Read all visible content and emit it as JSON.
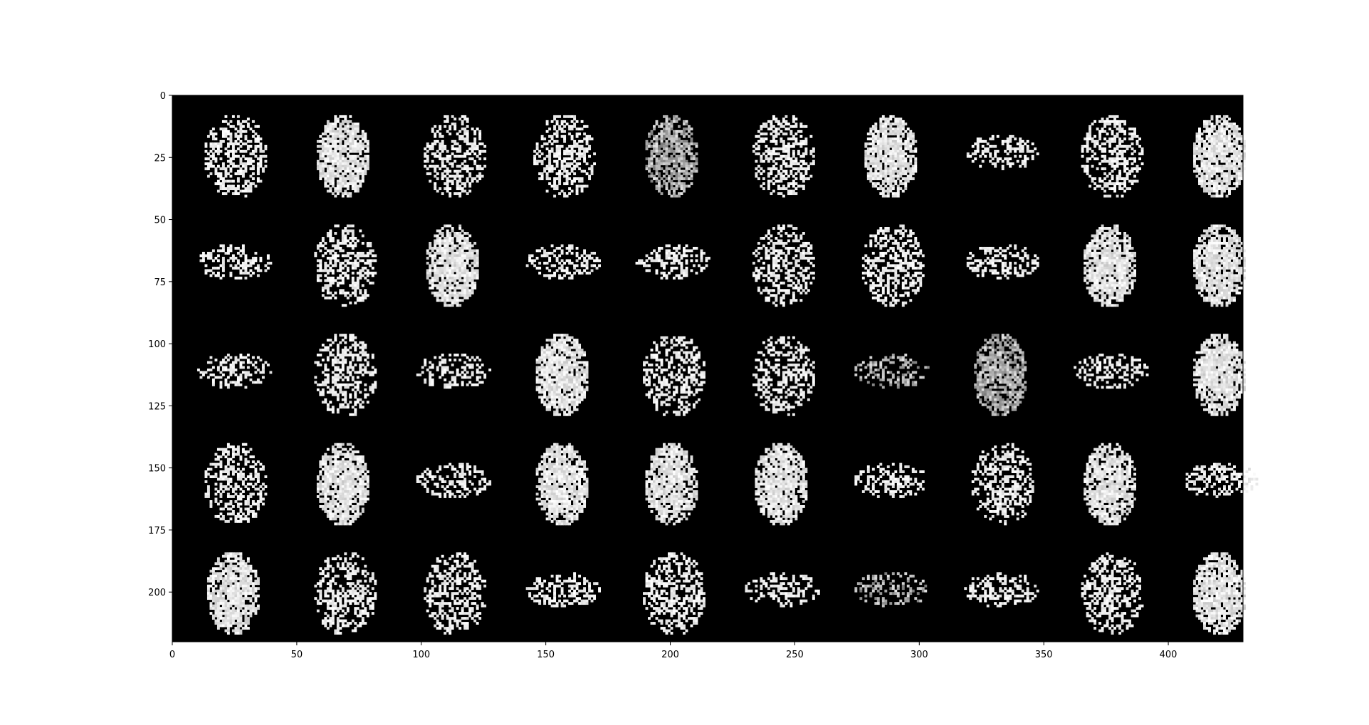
{
  "chart_data": {
    "type": "heatmap",
    "title": "",
    "xlabel": "",
    "ylabel": "",
    "colormap": "gray",
    "background_color": "#000000",
    "foreground_color": "#ffffff",
    "image_extent": {
      "x": [
        0,
        430
      ],
      "y": [
        0,
        220
      ]
    },
    "y_axis_inverted": true,
    "grid": false,
    "x_ticks": [
      0,
      50,
      100,
      150,
      200,
      250,
      300,
      350,
      400
    ],
    "y_ticks": [
      0,
      25,
      50,
      75,
      100,
      125,
      150,
      175,
      200
    ],
    "x_tick_labels": [
      "0",
      "50",
      "100",
      "150",
      "200",
      "250",
      "300",
      "350",
      "400"
    ],
    "y_tick_labels": [
      "0",
      "25",
      "50",
      "75",
      "100",
      "125",
      "150",
      "175",
      "200"
    ],
    "grid_rows": 5,
    "grid_cols": 10,
    "tile_size": 42,
    "tiles": [
      [
        "sparse",
        "dense",
        "sparse",
        "sparse",
        "dense-dim",
        "sparse",
        "dense",
        "wide",
        "sparse",
        "dense"
      ],
      [
        "wide",
        "sparse",
        "dense",
        "wide",
        "wide",
        "sparse",
        "sparse",
        "wide",
        "dense",
        "dense"
      ],
      [
        "wide",
        "sparse",
        "wide",
        "dense",
        "sparse",
        "sparse",
        "wide-dim",
        "dense-dim",
        "wide",
        "dense"
      ],
      [
        "sparse",
        "dense",
        "wide",
        "dense",
        "dense",
        "dense",
        "wide",
        "sparse",
        "dense",
        "wide"
      ],
      [
        "dense",
        "sparse",
        "sparse",
        "wide",
        "sparse",
        "wide",
        "wide-dim",
        "wide",
        "sparse",
        "dense"
      ]
    ]
  }
}
